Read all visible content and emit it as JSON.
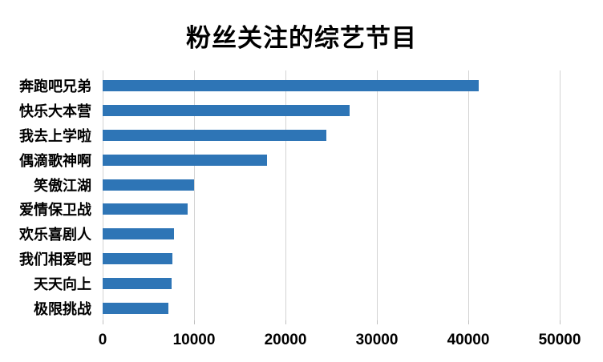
{
  "chart_data": {
    "type": "bar",
    "orientation": "horizontal",
    "title": "粉丝关注的综艺节目",
    "categories": [
      "奔跑吧兄弟",
      "快乐大本营",
      "我去上学啦",
      "偶滴歌神啊",
      "笑傲江湖",
      "爱情保卫战",
      "欢乐喜剧人",
      "我们相爱吧",
      "天天向上",
      "极限挑战"
    ],
    "values": [
      41100,
      27000,
      24500,
      18000,
      10000,
      9300,
      7800,
      7600,
      7500,
      7200
    ],
    "xlabel": "",
    "ylabel": "",
    "xlim": [
      0,
      50000
    ],
    "x_ticks": [
      0,
      10000,
      20000,
      30000,
      40000,
      50000
    ],
    "x_tick_labels": [
      "0",
      "10000",
      "20000",
      "30000",
      "40000",
      "50000"
    ],
    "grid": "vertical-gridlines-on",
    "legend": "none",
    "colors": {
      "bar": "#2e75b6",
      "gridline": "#d3d3d3",
      "tick": "#bfbfbf",
      "text": "#000000",
      "background": "#ffffff"
    }
  }
}
